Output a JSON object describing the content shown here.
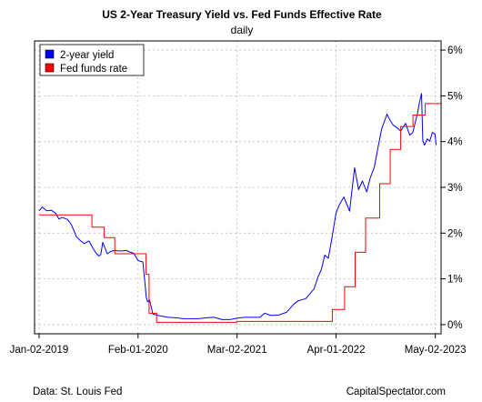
{
  "chart_data": {
    "type": "line",
    "title": "US 2-Year Treasury Yield vs. Fed Funds Effective Rate",
    "subtitle": "daily",
    "x_ticks": [
      "Jan-02-2019",
      "Feb-01-2020",
      "Mar-02-2021",
      "Apr-01-2022",
      "May-02-2023"
    ],
    "xlim": [
      "2018-12-15",
      "2023-05-25"
    ],
    "y_ticks": [
      "0%",
      "1%",
      "2%",
      "3%",
      "4%",
      "5%",
      "6%"
    ],
    "ylim": [
      -0.2,
      6.2
    ],
    "y_axis_side": "right",
    "grid": true,
    "legend_position": "top-left",
    "series": [
      {
        "name": "2-year yield",
        "color": "#0000ff",
        "x": [
          "2019-01-02",
          "2019-01-15",
          "2019-02-01",
          "2019-02-20",
          "2019-03-10",
          "2019-03-22",
          "2019-04-05",
          "2019-04-25",
          "2019-05-10",
          "2019-05-31",
          "2019-06-15",
          "2019-07-01",
          "2019-07-20",
          "2019-08-05",
          "2019-08-15",
          "2019-08-28",
          "2019-09-05",
          "2019-09-13",
          "2019-10-01",
          "2019-10-15",
          "2019-11-01",
          "2019-11-15",
          "2019-12-01",
          "2019-12-15",
          "2020-01-02",
          "2020-01-15",
          "2020-02-01",
          "2020-02-20",
          "2020-02-28",
          "2020-03-05",
          "2020-03-10",
          "2020-03-18",
          "2020-03-31",
          "2020-04-15",
          "2020-05-01",
          "2020-06-01",
          "2020-07-01",
          "2020-08-01",
          "2020-09-01",
          "2020-10-01",
          "2020-11-01",
          "2020-12-01",
          "2021-01-01",
          "2021-02-01",
          "2021-03-01",
          "2021-04-01",
          "2021-05-01",
          "2021-06-01",
          "2021-06-20",
          "2021-07-15",
          "2021-08-15",
          "2021-09-15",
          "2021-10-15",
          "2021-11-01",
          "2021-12-01",
          "2022-01-03",
          "2022-01-20",
          "2022-02-01",
          "2022-02-15",
          "2022-03-01",
          "2022-03-15",
          "2022-04-01",
          "2022-04-15",
          "2022-05-02",
          "2022-05-25",
          "2022-06-14",
          "2022-06-30",
          "2022-07-15",
          "2022-08-01",
          "2022-08-15",
          "2022-09-01",
          "2022-09-15",
          "2022-09-30",
          "2022-10-15",
          "2022-10-21",
          "2022-11-01",
          "2022-11-15",
          "2022-12-01",
          "2022-12-15",
          "2023-01-03",
          "2023-01-20",
          "2023-02-01",
          "2023-02-20",
          "2023-03-01",
          "2023-03-08",
          "2023-03-13",
          "2023-03-20",
          "2023-03-31",
          "2023-04-10",
          "2023-04-20",
          "2023-05-01",
          "2023-05-05"
        ],
        "values": [
          2.49,
          2.57,
          2.49,
          2.5,
          2.43,
          2.31,
          2.34,
          2.3,
          2.2,
          1.92,
          1.84,
          1.77,
          1.83,
          1.67,
          1.58,
          1.5,
          1.53,
          1.8,
          1.55,
          1.6,
          1.62,
          1.61,
          1.61,
          1.62,
          1.58,
          1.56,
          1.4,
          1.37,
          0.92,
          0.59,
          0.5,
          0.54,
          0.23,
          0.21,
          0.19,
          0.16,
          0.15,
          0.13,
          0.13,
          0.13,
          0.15,
          0.16,
          0.11,
          0.11,
          0.14,
          0.16,
          0.16,
          0.16,
          0.25,
          0.2,
          0.21,
          0.27,
          0.45,
          0.52,
          0.57,
          0.78,
          1.06,
          1.2,
          1.52,
          1.45,
          1.87,
          2.44,
          2.63,
          2.79,
          2.48,
          3.43,
          2.95,
          3.14,
          2.9,
          3.2,
          3.45,
          3.87,
          4.28,
          4.5,
          4.6,
          4.48,
          4.36,
          4.3,
          4.23,
          4.4,
          4.14,
          4.2,
          4.62,
          4.89,
          5.05,
          4.03,
          3.92,
          4.06,
          4.01,
          4.2,
          4.16,
          3.92
        ]
      },
      {
        "name": "Fed funds rate",
        "color": "#ff0000",
        "x": [
          "2019-01-02",
          "2019-08-01",
          "2019-09-19",
          "2019-10-31",
          "2020-03-04",
          "2020-03-16",
          "2020-04-15",
          "2021-03-01",
          "2022-03-17",
          "2022-05-05",
          "2022-06-16",
          "2022-07-28",
          "2022-09-22",
          "2022-11-03",
          "2022-12-15",
          "2023-02-02",
          "2023-03-23",
          "2023-05-04"
        ],
        "values": [
          2.4,
          2.13,
          1.9,
          1.55,
          1.1,
          0.25,
          0.05,
          0.07,
          0.33,
          0.83,
          1.58,
          2.33,
          3.08,
          3.83,
          4.33,
          4.58,
          4.83,
          4.83
        ]
      }
    ]
  },
  "source_note": "Data: St. Louis Fed",
  "credit": "CapitalSpectator.com"
}
